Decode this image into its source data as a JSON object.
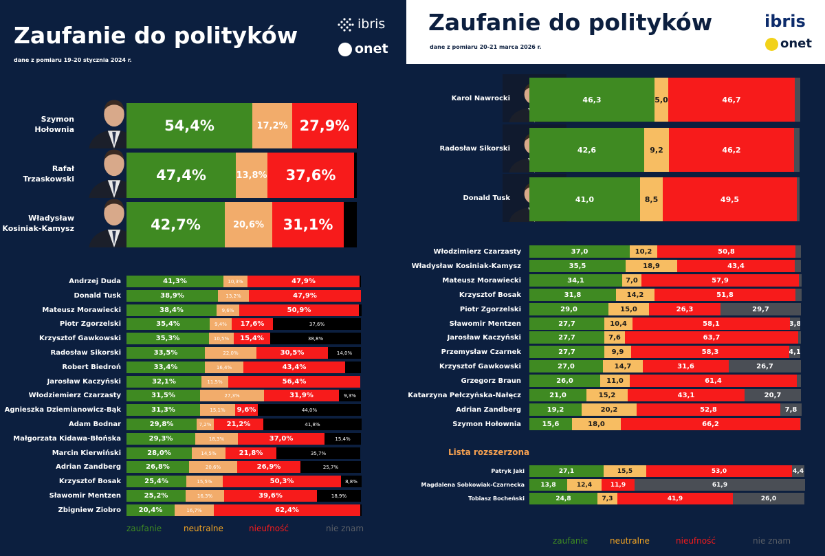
{
  "colors": {
    "trust": "#3f8a22",
    "neutral": "#f2ac6b",
    "neutral_2026": "#f7bd62",
    "distrust": "#f71b1b",
    "unknown_2024": "#000000",
    "unknown_2026": "#4a4e55",
    "background": "#0c1f3f",
    "legend_neutral": "#f5a623",
    "legend_unknown": "#5a5f66",
    "lista_rozszerzona": "#f5a050"
  },
  "left": {
    "title": "Zaufanie do polityków",
    "subtitle": "dane z pomiaru 19-20 stycznia 2024 r.",
    "logo_ibris": "ibris",
    "logo_onet": "onet",
    "ibris_icon": "ibris-icon",
    "onet_icon": "onet-icon"
  },
  "right": {
    "title": "Zaufanie do polityków",
    "subtitle": "dane z pomiaru 20-21 marca 2026 r.",
    "logo_ibris": "ibris",
    "logo_onet": "onet",
    "onet_icon": "onet-icon",
    "section_extended": "Lista rozszerzona"
  },
  "legend": {
    "trust": "zaufanie",
    "neutral": "neutralne",
    "distrust": "nieufność",
    "unknown": "nie znam"
  },
  "chart_data": [
    {
      "type": "bar",
      "stacked": true,
      "orientation": "horizontal",
      "title": "Zaufanie do polityków (2024)",
      "series_names": [
        "zaufanie",
        "neutralne",
        "nieufność",
        "nie znam"
      ],
      "featured": [
        {
          "name": "Szymon\nHołownia",
          "labels": [
            "54,4%",
            "17,2%",
            "27,9%",
            ""
          ],
          "values": [
            54.4,
            17.2,
            27.9,
            0.5
          ]
        },
        {
          "name": "Rafał\nTrzaskowski",
          "labels": [
            "47,4%",
            "13,8%",
            "37,6%",
            ""
          ],
          "values": [
            47.4,
            13.8,
            37.6,
            1.2
          ]
        },
        {
          "name": "Władysław\nKosiniak-Kamysz",
          "labels": [
            "42,7%",
            "20,6%",
            "31,1%",
            ""
          ],
          "values": [
            42.7,
            20.6,
            31.1,
            5.6
          ]
        }
      ],
      "rows": [
        {
          "name": "Andrzej Duda",
          "labels": [
            "41,3%",
            "10,3%",
            "47,9%",
            ""
          ],
          "values": [
            41.3,
            10.3,
            47.9,
            0.5
          ]
        },
        {
          "name": "Donald Tusk",
          "labels": [
            "38,9%",
            "13,2%",
            "47,9%",
            ""
          ],
          "values": [
            38.9,
            13.2,
            47.9,
            0.0
          ]
        },
        {
          "name": "Mateusz Morawiecki",
          "labels": [
            "38,4%",
            "9,6%",
            "50,9%",
            ""
          ],
          "values": [
            38.4,
            9.6,
            50.9,
            1.1
          ]
        },
        {
          "name": "Piotr Zgorzelski",
          "labels": [
            "35,4%",
            "9,4%",
            "17,6%",
            "37,6%"
          ],
          "values": [
            35.4,
            9.4,
            17.6,
            37.6
          ]
        },
        {
          "name": "Krzysztof Gawkowski",
          "labels": [
            "35,3%",
            "10,5%",
            "15,4%",
            "38,8%"
          ],
          "values": [
            35.3,
            10.5,
            15.4,
            38.8
          ]
        },
        {
          "name": "Radosław Sikorski",
          "labels": [
            "33,5%",
            "22,0%",
            "30,5%",
            "14,0%"
          ],
          "values": [
            33.5,
            22.0,
            30.5,
            14.0
          ]
        },
        {
          "name": "Robert Biedroń",
          "labels": [
            "33,4%",
            "16,4%",
            "43,4%",
            ""
          ],
          "values": [
            33.4,
            16.4,
            43.4,
            6.8
          ]
        },
        {
          "name": "Jarosław Kaczyński",
          "labels": [
            "32,1%",
            "11,5%",
            "56,4%",
            ""
          ],
          "values": [
            32.1,
            11.5,
            56.4,
            0.0
          ]
        },
        {
          "name": "Włodziemierz Czarzasty",
          "labels": [
            "31,5%",
            "27,3%",
            "31,9%",
            "9,3%"
          ],
          "values": [
            31.5,
            27.3,
            31.9,
            9.3
          ]
        },
        {
          "name": "Agnieszka Dziemianowicz-Bąk",
          "labels": [
            "31,3%",
            "15,1%",
            "9,6%",
            "44,0%"
          ],
          "values": [
            31.3,
            15.1,
            9.6,
            44.0
          ]
        },
        {
          "name": "Adam Bodnar",
          "labels": [
            "29,8%",
            "7,2%",
            "21,2%",
            "41,8%"
          ],
          "values": [
            29.8,
            7.2,
            21.2,
            41.8
          ]
        },
        {
          "name": "Małgorzata Kidawa-Błońska",
          "labels": [
            "29,3%",
            "18,3%",
            "37,0%",
            "15,4%"
          ],
          "values": [
            29.3,
            18.3,
            37.0,
            15.4
          ]
        },
        {
          "name": "Marcin Kierwiński",
          "labels": [
            "28,0%",
            "14,5%",
            "21,8%",
            "35,7%"
          ],
          "values": [
            28.0,
            14.5,
            21.8,
            35.7
          ]
        },
        {
          "name": "Adrian Zandberg",
          "labels": [
            "26,8%",
            "20,6%",
            "26,9%",
            "25,7%"
          ],
          "values": [
            26.8,
            20.6,
            26.9,
            25.7
          ]
        },
        {
          "name": "Krzysztof Bosak",
          "labels": [
            "25,4%",
            "15,5%",
            "50,3%",
            "8,8%"
          ],
          "values": [
            25.4,
            15.5,
            50.3,
            8.8
          ]
        },
        {
          "name": "Sławomir Mentzen",
          "labels": [
            "25,2%",
            "16,3%",
            "39,6%",
            "18,9%"
          ],
          "values": [
            25.2,
            16.3,
            39.6,
            18.9
          ]
        },
        {
          "name": "Zbigniew Ziobro",
          "labels": [
            "20,4%",
            "16,7%",
            "62,4%",
            ""
          ],
          "values": [
            20.4,
            16.7,
            62.4,
            0.5
          ]
        }
      ]
    },
    {
      "type": "bar",
      "stacked": true,
      "orientation": "horizontal",
      "title": "Zaufanie do polityków (2026)",
      "series_names": [
        "zaufanie",
        "neutralne",
        "nieufność",
        "nie znam"
      ],
      "featured": [
        {
          "name": "Karol Nawrocki",
          "labels": [
            "46,3",
            "5,0",
            "46,7",
            ""
          ],
          "values": [
            46.3,
            5.0,
            46.7,
            2.0
          ]
        },
        {
          "name": "Radosław Sikorski",
          "labels": [
            "42,6",
            "9,2",
            "46,2",
            ""
          ],
          "values": [
            42.6,
            9.2,
            46.2,
            2.0
          ]
        },
        {
          "name": "Donald Tusk",
          "labels": [
            "41,0",
            "8,5",
            "49,5",
            ""
          ],
          "values": [
            41.0,
            8.5,
            49.5,
            1.0
          ]
        }
      ],
      "rows": [
        {
          "name": "Włodzimierz Czarzasty",
          "labels": [
            "37,0",
            "10,2",
            "50,8",
            ""
          ],
          "values": [
            37.0,
            10.2,
            50.8,
            2.0
          ]
        },
        {
          "name": "Władysław Kosiniak-Kamysz",
          "labels": [
            "35,5",
            "18,9",
            "43,4",
            ""
          ],
          "values": [
            35.5,
            18.9,
            43.4,
            2.2
          ]
        },
        {
          "name": "Mateusz Morawiecki",
          "labels": [
            "34,1",
            "7,0",
            "57,9",
            ""
          ],
          "values": [
            34.1,
            7.0,
            57.9,
            1.0
          ]
        },
        {
          "name": "Krzysztof Bosak",
          "labels": [
            "31,8",
            "14,2",
            "51,8",
            ""
          ],
          "values": [
            31.8,
            14.2,
            51.8,
            2.2
          ]
        },
        {
          "name": "Piotr Zgorzelski",
          "labels": [
            "29,0",
            "15,0",
            "26,3",
            "29,7"
          ],
          "values": [
            29.0,
            15.0,
            26.3,
            29.7
          ]
        },
        {
          "name": "Sławomir Mentzen",
          "labels": [
            "27,7",
            "10,4",
            "58,1",
            "3,8"
          ],
          "values": [
            27.7,
            10.4,
            58.1,
            3.8
          ]
        },
        {
          "name": "Jarosław Kaczyński",
          "labels": [
            "27,7",
            "7,6",
            "63,7",
            ""
          ],
          "values": [
            27.7,
            7.6,
            63.7,
            1.0
          ]
        },
        {
          "name": "Przemysław Czarnek",
          "labels": [
            "27,7",
            "9,9",
            "58,3",
            "4,1"
          ],
          "values": [
            27.7,
            9.9,
            58.3,
            4.1
          ]
        },
        {
          "name": "Krzysztof Gawkowski",
          "labels": [
            "27,0",
            "14,7",
            "31,6",
            "26,7"
          ],
          "values": [
            27.0,
            14.7,
            31.6,
            26.7
          ]
        },
        {
          "name": "Grzegorz Braun",
          "labels": [
            "26,0",
            "11,0",
            "61,4",
            ""
          ],
          "values": [
            26.0,
            11.0,
            61.4,
            1.6
          ]
        },
        {
          "name": "Katarzyna Pełczyńska-Nałęcz",
          "labels": [
            "21,0",
            "15,2",
            "43,1",
            "20,7"
          ],
          "values": [
            21.0,
            15.2,
            43.1,
            20.7
          ]
        },
        {
          "name": "Adrian Zandberg",
          "labels": [
            "19,2",
            "20,2",
            "52,8",
            "7,8"
          ],
          "values": [
            19.2,
            20.2,
            52.8,
            7.8
          ]
        },
        {
          "name": "Szymon Hołownia",
          "labels": [
            "15,6",
            "18,0",
            "66,2",
            ""
          ],
          "values": [
            15.6,
            18.0,
            66.2,
            0.2
          ]
        }
      ],
      "extended": [
        {
          "name": "Patryk Jaki",
          "labels": [
            "27,1",
            "15,5",
            "53,0",
            "4,4"
          ],
          "values": [
            27.1,
            15.5,
            53.0,
            4.4
          ]
        },
        {
          "name": "Magdalena Sobkowiak-Czarnecka",
          "labels": [
            "13,8",
            "12,4",
            "11,9",
            "61,9"
          ],
          "values": [
            13.8,
            12.4,
            11.9,
            61.9
          ]
        },
        {
          "name": "Tobiasz Bocheński",
          "labels": [
            "24,8",
            "7,3",
            "41,9",
            "26,0"
          ],
          "values": [
            24.8,
            7.3,
            41.9,
            26.0
          ]
        }
      ]
    }
  ]
}
